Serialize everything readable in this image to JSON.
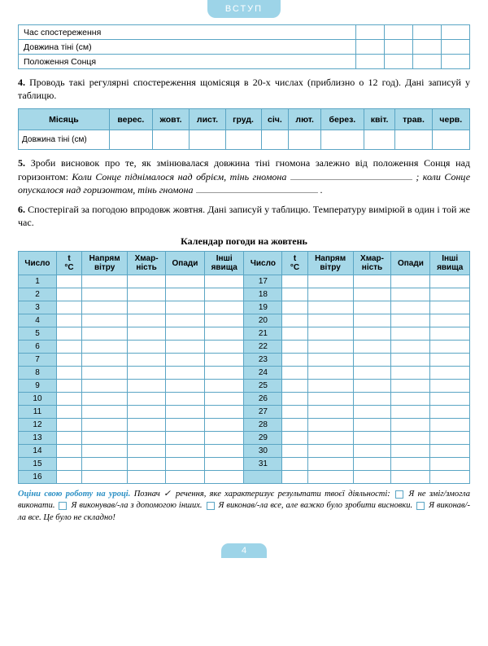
{
  "header": {
    "label": "ВСТУП"
  },
  "table1": {
    "rows": [
      "Час спостереження",
      "Довжина тіні (см)",
      "Положення Сонця"
    ],
    "blank_cols": 4
  },
  "para4": {
    "num": "4.",
    "text": "Проводь такі регулярні спостереження щомісяця в 20-х числах (приблизно о 12 год). Дані записуй у таблицю."
  },
  "table2": {
    "headers": [
      "Місяць",
      "верес.",
      "жовт.",
      "лист.",
      "груд.",
      "січ.",
      "лют.",
      "берез.",
      "квіт.",
      "трав.",
      "черв."
    ],
    "row_label": "Довжина тіні (см)"
  },
  "para5": {
    "num": "5.",
    "text_a": "Зроби висновок про те, як змінювалася довжина тіні гномона залежно від положення Сонця над горизонтом: ",
    "italic_a": "Коли Сонце піднімалося над обрієм, тінь гномона",
    "italic_b": "; коли Сонце опускалося над горизонтом, тінь гномона",
    "trail": "."
  },
  "para6": {
    "num": "6.",
    "text": "Спостерігай за погодою впродовж жовтня. Дані записуй у таблицю. Температуру вимірюй в один і той же час."
  },
  "calendar": {
    "title": "Календар погоди на жовтень",
    "headers": [
      "Число",
      "t °C",
      "Напрям вітру",
      "Хмар-ність",
      "Опади",
      "Інші явища"
    ],
    "left_numbers": [
      1,
      2,
      3,
      4,
      5,
      6,
      7,
      8,
      9,
      10,
      11,
      12,
      13,
      14,
      15,
      16
    ],
    "right_numbers": [
      17,
      18,
      19,
      20,
      21,
      22,
      23,
      24,
      25,
      26,
      27,
      28,
      29,
      30,
      31,
      ""
    ]
  },
  "footer": {
    "lead": "Оціни свою роботу на уроці.",
    "instr": " Познач ✓ речення, яке характеризує результати твоєї діяльності: ",
    "opt1": " Я не зміг/змогла виконати. ",
    "opt2": " Я виконував/-ла з допомогою інших. ",
    "opt3": " Я виконав/-ла все, але важко було зробити висновки. ",
    "opt4": " Я виконав/-ла все. Це було не складно!"
  },
  "page_number": "4",
  "colors": {
    "accent": "#9dd4e8",
    "border": "#5aa5c4",
    "header_bg": "#a6d8e8"
  }
}
